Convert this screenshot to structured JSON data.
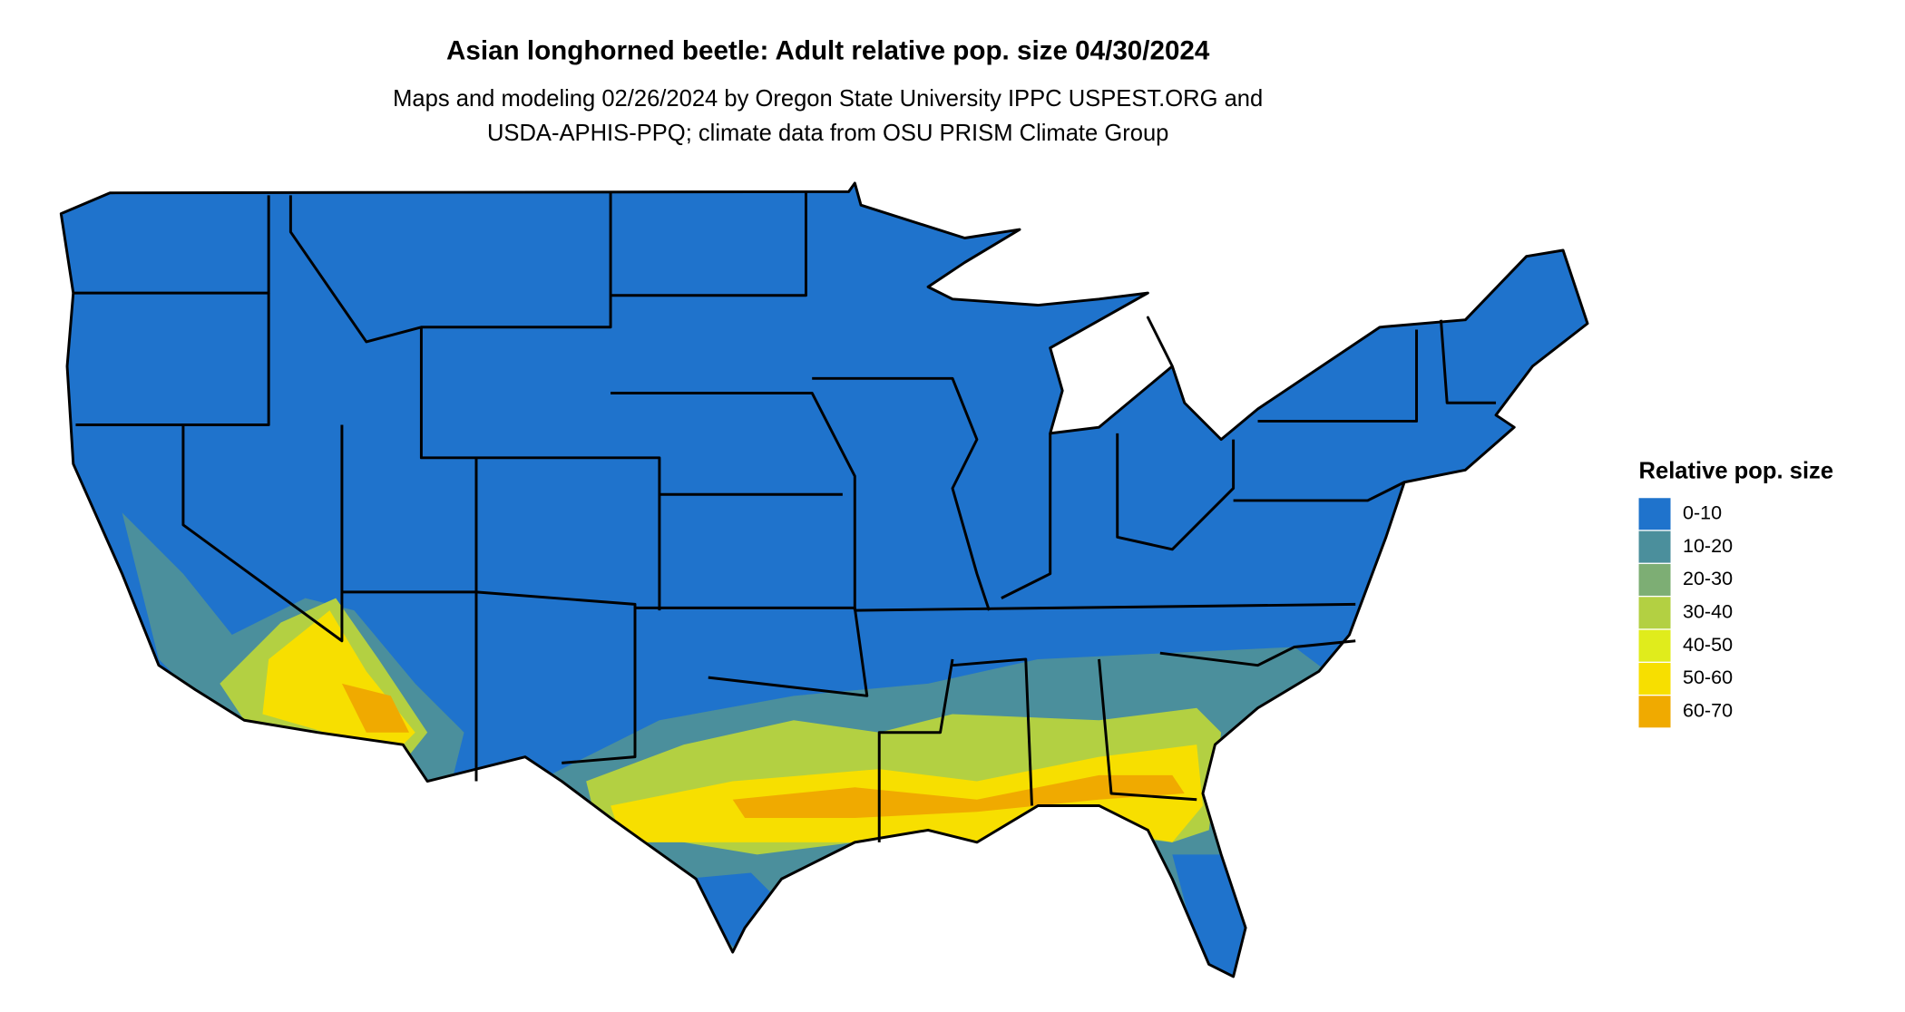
{
  "title": "Asian longhorned beetle: Adult relative pop. size 04/30/2024",
  "subtitle": [
    "Maps and modeling 02/26/2024 by Oregon State University IPPC USPEST.ORG and",
    "USDA-APHIS-PPQ; climate data from OSU PRISM Climate Group"
  ],
  "legend": {
    "title": "Relative pop. size",
    "items": [
      {
        "label": "0-10",
        "color": "#1f73cc"
      },
      {
        "label": "10-20",
        "color": "#4b8f9c"
      },
      {
        "label": "20-30",
        "color": "#7dae74"
      },
      {
        "label": "30-40",
        "color": "#b3d042"
      },
      {
        "label": "40-50",
        "color": "#e0ec1c"
      },
      {
        "label": "50-60",
        "color": "#f7df00"
      },
      {
        "label": "60-70",
        "color": "#f0aa00"
      }
    ]
  }
}
